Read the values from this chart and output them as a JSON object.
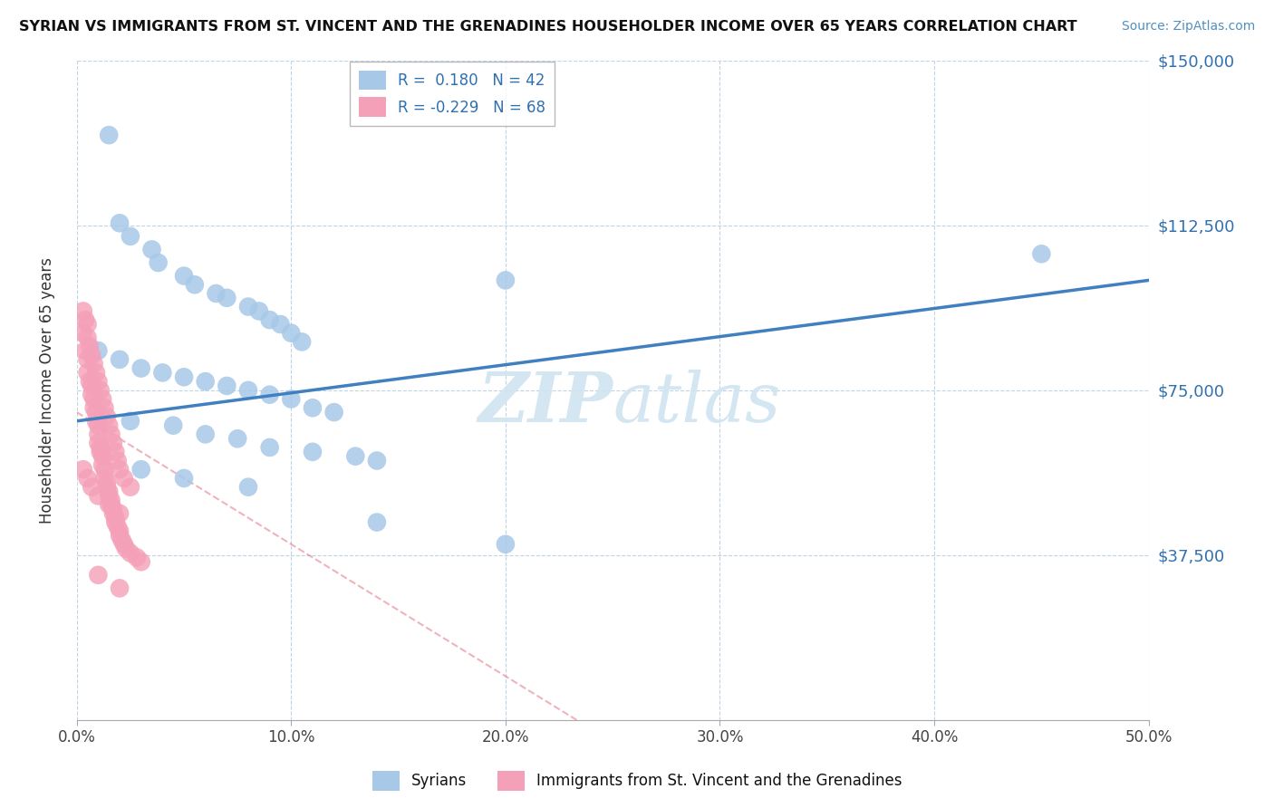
{
  "title": "SYRIAN VS IMMIGRANTS FROM ST. VINCENT AND THE GRENADINES HOUSEHOLDER INCOME OVER 65 YEARS CORRELATION CHART",
  "source": "Source: ZipAtlas.com",
  "ylabel": "Householder Income Over 65 years",
  "xlim": [
    0.0,
    50.0
  ],
  "ylim": [
    0,
    150000
  ],
  "yticks": [
    0,
    37500,
    75000,
    112500,
    150000
  ],
  "ytick_labels": [
    "",
    "$37,500",
    "$75,000",
    "$112,500",
    "$150,000"
  ],
  "xticks": [
    0,
    10,
    20,
    30,
    40,
    50
  ],
  "xtick_labels": [
    "0.0%",
    "10.0%",
    "20.0%",
    "30.0%",
    "40.0%",
    "50.0%"
  ],
  "blue_R": 0.18,
  "blue_N": 42,
  "pink_R": -0.229,
  "pink_N": 68,
  "blue_color": "#a8c8e8",
  "pink_color": "#f4a0b8",
  "blue_line_color": "#4080c0",
  "pink_line_color": "#e06878",
  "watermark_color": "#d0e4f0",
  "background_color": "#ffffff",
  "grid_color": "#c0d4e8",
  "blue_dots": [
    [
      1.5,
      133000
    ],
    [
      2.0,
      113000
    ],
    [
      2.5,
      110000
    ],
    [
      3.5,
      107000
    ],
    [
      3.8,
      104000
    ],
    [
      5.0,
      101000
    ],
    [
      5.5,
      99000
    ],
    [
      6.5,
      97000
    ],
    [
      7.0,
      96000
    ],
    [
      8.0,
      94000
    ],
    [
      8.5,
      93000
    ],
    [
      9.0,
      91000
    ],
    [
      9.5,
      90000
    ],
    [
      10.0,
      88000
    ],
    [
      10.5,
      86000
    ],
    [
      1.0,
      84000
    ],
    [
      2.0,
      82000
    ],
    [
      3.0,
      80000
    ],
    [
      4.0,
      79000
    ],
    [
      5.0,
      78000
    ],
    [
      6.0,
      77000
    ],
    [
      7.0,
      76000
    ],
    [
      8.0,
      75000
    ],
    [
      9.0,
      74000
    ],
    [
      10.0,
      73000
    ],
    [
      11.0,
      71000
    ],
    [
      12.0,
      70000
    ],
    [
      2.5,
      68000
    ],
    [
      4.5,
      67000
    ],
    [
      6.0,
      65000
    ],
    [
      7.5,
      64000
    ],
    [
      9.0,
      62000
    ],
    [
      11.0,
      61000
    ],
    [
      13.0,
      60000
    ],
    [
      14.0,
      59000
    ],
    [
      3.0,
      57000
    ],
    [
      5.0,
      55000
    ],
    [
      8.0,
      53000
    ],
    [
      14.0,
      45000
    ],
    [
      20.0,
      40000
    ],
    [
      20.0,
      100000
    ],
    [
      45.0,
      106000
    ]
  ],
  "pink_dots": [
    [
      0.3,
      88000
    ],
    [
      0.4,
      84000
    ],
    [
      0.5,
      82000
    ],
    [
      0.5,
      79000
    ],
    [
      0.6,
      77000
    ],
    [
      0.7,
      76000
    ],
    [
      0.7,
      74000
    ],
    [
      0.8,
      73000
    ],
    [
      0.8,
      71000
    ],
    [
      0.9,
      70000
    ],
    [
      0.9,
      68000
    ],
    [
      1.0,
      67000
    ],
    [
      1.0,
      65000
    ],
    [
      1.0,
      63000
    ],
    [
      1.1,
      62000
    ],
    [
      1.1,
      61000
    ],
    [
      1.2,
      60000
    ],
    [
      1.2,
      58000
    ],
    [
      1.3,
      57000
    ],
    [
      1.3,
      55000
    ],
    [
      1.4,
      54000
    ],
    [
      1.4,
      53000
    ],
    [
      1.5,
      52000
    ],
    [
      1.5,
      51000
    ],
    [
      1.6,
      50000
    ],
    [
      1.6,
      49000
    ],
    [
      1.7,
      48000
    ],
    [
      1.7,
      47000
    ],
    [
      1.8,
      46000
    ],
    [
      1.8,
      45000
    ],
    [
      1.9,
      44000
    ],
    [
      2.0,
      43000
    ],
    [
      2.0,
      42000
    ],
    [
      2.1,
      41000
    ],
    [
      2.2,
      40000
    ],
    [
      2.3,
      39000
    ],
    [
      2.5,
      38000
    ],
    [
      2.8,
      37000
    ],
    [
      3.0,
      36000
    ],
    [
      0.3,
      93000
    ],
    [
      0.4,
      91000
    ],
    [
      0.5,
      90000
    ],
    [
      0.5,
      87000
    ],
    [
      0.6,
      85000
    ],
    [
      0.7,
      83000
    ],
    [
      0.8,
      81000
    ],
    [
      0.9,
      79000
    ],
    [
      1.0,
      77000
    ],
    [
      1.1,
      75000
    ],
    [
      1.2,
      73000
    ],
    [
      1.3,
      71000
    ],
    [
      1.4,
      69000
    ],
    [
      1.5,
      67000
    ],
    [
      1.6,
      65000
    ],
    [
      1.7,
      63000
    ],
    [
      1.8,
      61000
    ],
    [
      1.9,
      59000
    ],
    [
      2.0,
      57000
    ],
    [
      2.2,
      55000
    ],
    [
      2.5,
      53000
    ],
    [
      0.3,
      57000
    ],
    [
      0.5,
      55000
    ],
    [
      0.7,
      53000
    ],
    [
      1.0,
      51000
    ],
    [
      1.5,
      49000
    ],
    [
      2.0,
      47000
    ],
    [
      1.0,
      33000
    ],
    [
      2.0,
      30000
    ]
  ]
}
